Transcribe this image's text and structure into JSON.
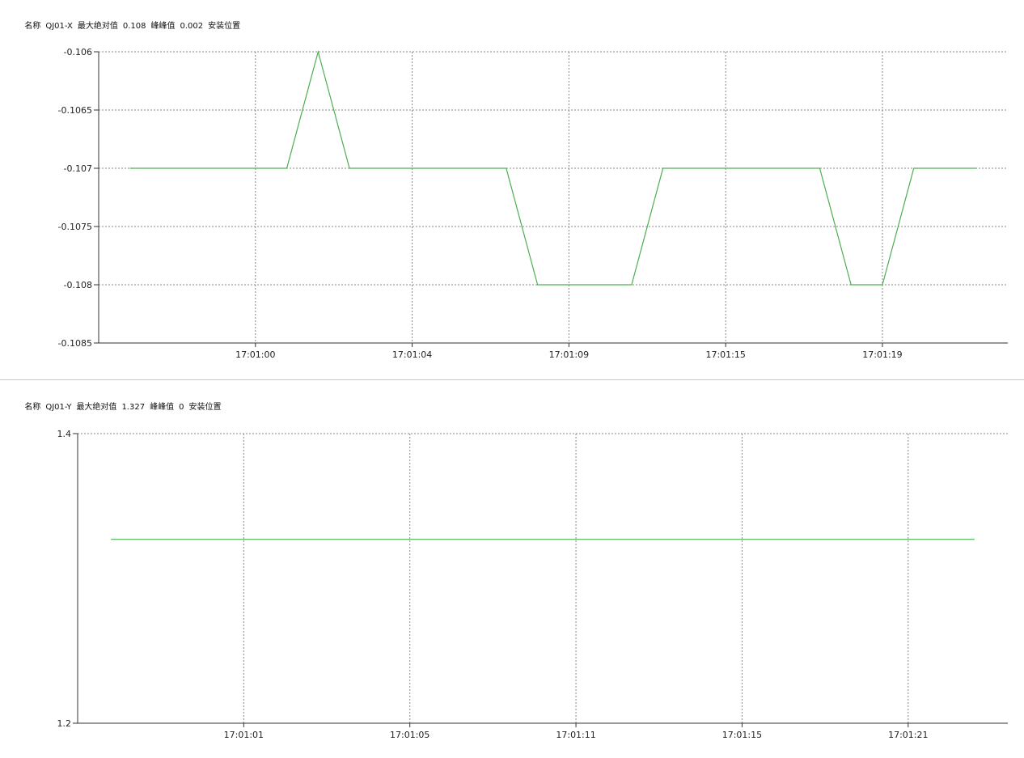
{
  "chart_data": [
    {
      "type": "line",
      "header": {
        "name_label": "名称",
        "name": "QJ01-X",
        "max_abs_label": "最大绝对值",
        "max_abs": "0.108",
        "p2p_label": "峰峰值",
        "p2p": "0.002",
        "location_label": "安装位置"
      },
      "x_ticks": [
        {
          "index": 4,
          "label": "17:01:00"
        },
        {
          "index": 9,
          "label": "17:01:04"
        },
        {
          "index": 14,
          "label": "17:01:09"
        },
        {
          "index": 19,
          "label": "17:01:15"
        },
        {
          "index": 24,
          "label": "17:01:19"
        }
      ],
      "y_ticks": [
        "-0.106",
        "-0.1065",
        "-0.107",
        "-0.1075",
        "-0.108",
        "-0.1085"
      ],
      "ylim": [
        -0.1085,
        -0.106
      ],
      "xlim": [
        -1,
        28
      ],
      "grid": {
        "horizontal": true,
        "vertical": true
      },
      "color": "#4caf50",
      "values": [
        -0.107,
        -0.107,
        -0.107,
        -0.107,
        -0.107,
        -0.107,
        -0.106,
        -0.107,
        -0.107,
        -0.107,
        -0.107,
        -0.107,
        -0.107,
        -0.108,
        -0.108,
        -0.108,
        -0.108,
        -0.107,
        -0.107,
        -0.107,
        -0.107,
        -0.107,
        -0.107,
        -0.108,
        -0.108,
        -0.107,
        -0.107,
        -0.107
      ]
    },
    {
      "type": "line",
      "header": {
        "name_label": "名称",
        "name": "QJ01-Y",
        "max_abs_label": "最大绝对值",
        "max_abs": "1.327",
        "p2p_label": "峰峰值",
        "p2p": "0",
        "location_label": "安装位置"
      },
      "x_ticks": [
        {
          "index": 4,
          "label": "17:01:01"
        },
        {
          "index": 9,
          "label": "17:01:05"
        },
        {
          "index": 14,
          "label": "17:01:11"
        },
        {
          "index": 19,
          "label": "17:01:15"
        },
        {
          "index": 24,
          "label": "17:01:21"
        }
      ],
      "y_ticks": [
        "1.4",
        "1.2"
      ],
      "ylim": [
        1.2,
        1.4
      ],
      "xlim": [
        -1,
        27
      ],
      "grid": {
        "horizontal": true,
        "vertical": true
      },
      "color": "#4caf50",
      "values": [
        1.327,
        1.327,
        1.327,
        1.327,
        1.327,
        1.327,
        1.327,
        1.327,
        1.327,
        1.327,
        1.327,
        1.327,
        1.327,
        1.327,
        1.327,
        1.327,
        1.327,
        1.327,
        1.327,
        1.327,
        1.327,
        1.327,
        1.327,
        1.327,
        1.327,
        1.327,
        1.327
      ]
    }
  ]
}
